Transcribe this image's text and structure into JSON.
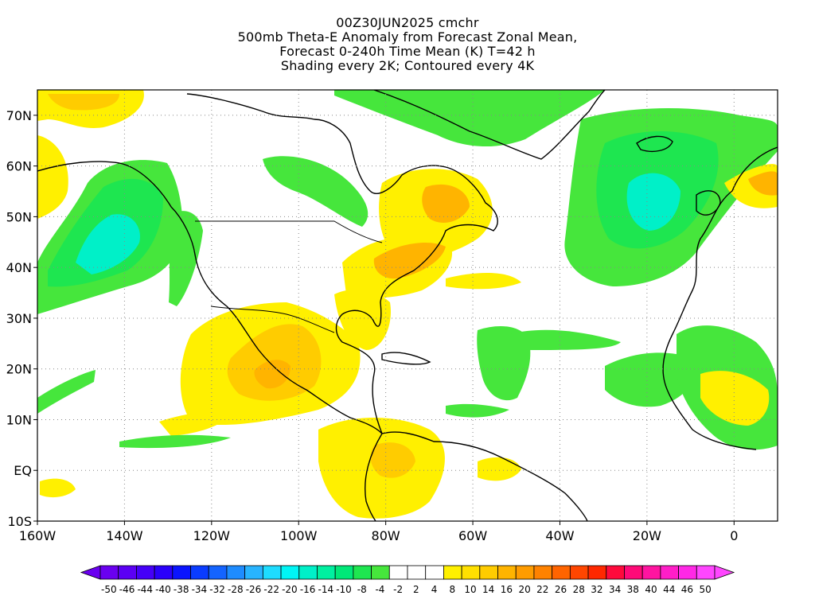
{
  "title": {
    "line1": "00Z30JUN2025 cmchr",
    "line2": "500mb Theta-E Anomaly from Forecast Zonal Mean,",
    "line3": "Forecast 0-240h Time Mean (K) T=42 h",
    "line4": "Shading every 2K; Contoured every 4K"
  },
  "axes": {
    "lat_labels": [
      "70N",
      "60N",
      "50N",
      "40N",
      "30N",
      "20N",
      "10N",
      "EQ",
      "10S"
    ],
    "lat_values": [
      70,
      60,
      50,
      40,
      30,
      20,
      10,
      0,
      -10
    ],
    "lon_labels": [
      "160W",
      "140W",
      "120W",
      "100W",
      "80W",
      "60W",
      "40W",
      "20W",
      "0"
    ],
    "lon_values": [
      -160,
      -140,
      -120,
      -100,
      -80,
      -60,
      -40,
      -20,
      0
    ],
    "lon_range": [
      -160,
      10
    ],
    "lat_range": [
      -10,
      75
    ],
    "grid": "dotted"
  },
  "colorbar": {
    "labels": [
      "-50",
      "-46",
      "-44",
      "-40",
      "-38",
      "-34",
      "-32",
      "-28",
      "-26",
      "-22",
      "-20",
      "-16",
      "-14",
      "-10",
      "-8",
      "-4",
      "-2",
      "2",
      "4",
      "8",
      "10",
      "14",
      "16",
      "20",
      "22",
      "26",
      "28",
      "32",
      "34",
      "38",
      "40",
      "44",
      "46",
      "50"
    ],
    "colors": [
      "#6a00f0",
      "#5b00f4",
      "#4500f8",
      "#2a00fb",
      "#0a14ff",
      "#0a3cff",
      "#1464ff",
      "#1e8cff",
      "#28b4ff",
      "#1edcff",
      "#00f5f5",
      "#00f0c8",
      "#00f0a0",
      "#00e878",
      "#1ee650",
      "#46e63c",
      "#ffffff",
      "#ffffff",
      "#ffffff",
      "#fff000",
      "#ffe000",
      "#ffcc00",
      "#ffb400",
      "#ff9c00",
      "#ff8200",
      "#ff6400",
      "#ff4600",
      "#ff2800",
      "#ff0a3c",
      "#ff0a78",
      "#ff14a0",
      "#ff1ec8",
      "#ff28e6",
      "#ff46ff"
    ]
  },
  "colors": {
    "cyan_core": "#00f0c8",
    "green": "#46e63c",
    "light_green": "#1ee650",
    "yellow": "#fff000",
    "orange": "#ffb400",
    "deep_orange": "#ff9c00"
  }
}
